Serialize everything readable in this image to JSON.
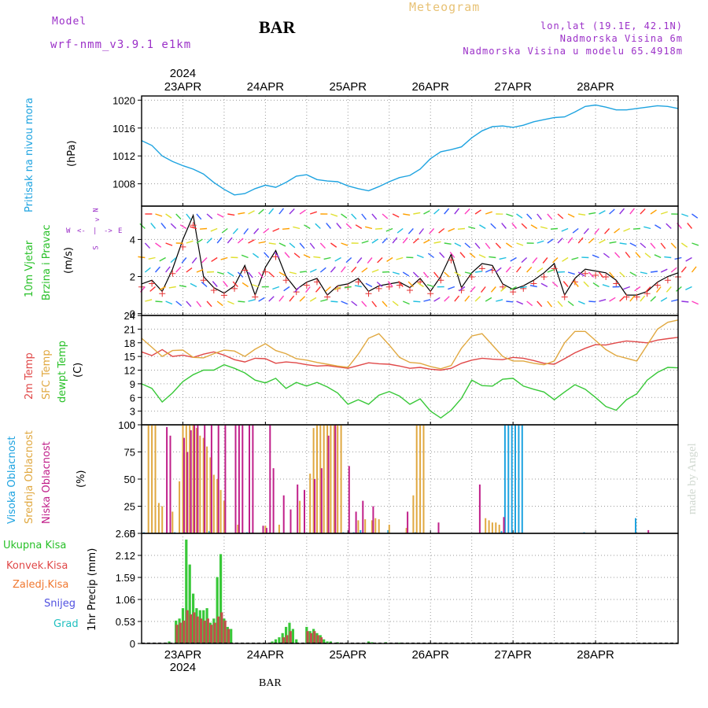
{
  "header": {
    "model_label": "Model",
    "model_value": "wrf-nmm_v3.9.1  e1km",
    "station": "BAR",
    "meteogram": "Meteogram",
    "lonlat": "lon,lat (19.1E, 42.1N)",
    "elevation": "Nadmorska Visina 6m",
    "model_elevation": "Nadmorska Visina u modelu 65.4918m",
    "credit": "made by Angel",
    "footer_station": "BAR"
  },
  "time_axis": {
    "year": "2024",
    "days": [
      "23APR",
      "24APR",
      "25APR",
      "26APR",
      "27APR",
      "28APR"
    ],
    "start_hour_offset": -12,
    "end_hour": 144
  },
  "panel_labels": {
    "pressure": {
      "title": "Pritisak na nivou mora",
      "unit": "(hPa)"
    },
    "wind": {
      "title1": "10m Vjetar",
      "title2": "Brzina i Pravac",
      "unit": "(m/s)",
      "compass_n": "N",
      "compass_s": "S",
      "compass_w": "W",
      "compass_e": "E"
    },
    "temp": {
      "t2m": "2m Temp",
      "sfc": "SFC Temp",
      "dew": "dewpt Temp",
      "unit": "(C)"
    },
    "cloud": {
      "high": "Visoka Oblacnost",
      "mid": "Srednja Oblacnost",
      "low": "Niska Oblacnost",
      "unit": "(%)"
    },
    "precip": {
      "total": "Ukupna Kisa",
      "conv": "Konvek.Kisa",
      "frz": "Zaledj.Kisa",
      "snow": "Snijeg",
      "grad": "Grad",
      "ylabel": "1hr Precip (mm)"
    }
  },
  "colors": {
    "pressure": "#1ea3e0",
    "wind_speed": "#000000",
    "wind_gust_marker": "#e53030",
    "t2m": "#e04848",
    "sfc": "#e0a840",
    "dew": "#38c838",
    "cloud_high": "#1ea3e0",
    "cloud_mid": "#e0a840",
    "cloud_low": "#c0208a",
    "precip_total": "#38c838",
    "precip_conv": "#c0504a",
    "precip_frz": "#f07830",
    "precip_snow": "#5050e0",
    "precip_grad": "#20c0c0"
  },
  "chart_data": [
    {
      "type": "line",
      "name_key": "pressure",
      "ylabel": "(hPa)",
      "ylim": [
        1004.8,
        1020.6
      ],
      "yticks": [
        1008,
        1012,
        1016,
        1020
      ],
      "grid": true,
      "x": [
        -12,
        -9,
        -6,
        -3,
        0,
        3,
        6,
        9,
        12,
        15,
        18,
        21,
        24,
        27,
        30,
        33,
        36,
        39,
        42,
        45,
        48,
        51,
        54,
        57,
        60,
        63,
        66,
        69,
        72,
        75,
        78,
        81,
        84,
        87,
        90,
        93,
        96,
        99,
        102,
        105,
        108,
        111,
        114,
        117,
        120,
        123,
        126,
        129,
        132,
        135,
        138,
        141,
        144
      ],
      "series": [
        {
          "name": "Pritisak na nivou mora",
          "values": [
            1014.2,
            1013.5,
            1012.0,
            1011.2,
            1010.6,
            1010.1,
            1009.4,
            1008.2,
            1007.2,
            1006.4,
            1006.6,
            1007.3,
            1007.8,
            1007.5,
            1008.2,
            1009.1,
            1009.3,
            1008.6,
            1008.4,
            1008.3,
            1007.7,
            1007.3,
            1007.0,
            1007.6,
            1008.3,
            1008.9,
            1009.2,
            1010.1,
            1011.6,
            1012.6,
            1012.9,
            1013.3,
            1014.6,
            1015.6,
            1016.2,
            1016.3,
            1016.1,
            1016.4,
            1016.9,
            1017.2,
            1017.5,
            1017.6,
            1018.3,
            1019.1,
            1019.3,
            1019.0,
            1018.6,
            1018.6,
            1018.8,
            1019.0,
            1019.2,
            1019.1,
            1018.8
          ]
        }
      ]
    },
    {
      "type": "line",
      "name_key": "wind",
      "ylabel": "(m/s)",
      "ylim": [
        -0.1,
        5.8
      ],
      "yticks": [
        0,
        2,
        4
      ],
      "grid": true,
      "x": [
        -12,
        -9,
        -6,
        -3,
        0,
        3,
        6,
        9,
        12,
        15,
        18,
        21,
        24,
        27,
        30,
        33,
        36,
        39,
        42,
        45,
        48,
        51,
        54,
        57,
        60,
        63,
        66,
        69,
        72,
        75,
        78,
        81,
        84,
        87,
        90,
        93,
        96,
        99,
        102,
        105,
        108,
        111,
        114,
        117,
        120,
        123,
        126,
        129,
        132,
        135,
        138,
        141,
        144
      ],
      "series": [
        {
          "name": "10m Vjetar",
          "values": [
            1.6,
            1.8,
            1.2,
            2.4,
            4.0,
            5.3,
            2.0,
            1.4,
            1.1,
            1.5,
            2.6,
            1.0,
            2.5,
            3.4,
            2.0,
            1.3,
            1.7,
            1.9,
            1.0,
            1.5,
            1.6,
            1.9,
            1.2,
            1.5,
            1.6,
            1.7,
            1.4,
            1.9,
            1.2,
            2.0,
            3.2,
            1.4,
            2.2,
            2.7,
            2.6,
            1.6,
            1.3,
            1.5,
            1.8,
            2.2,
            2.7,
            1.0,
            1.9,
            2.4,
            2.3,
            2.2,
            1.8,
            1.0,
            1.0,
            1.2,
            1.7,
            2.0,
            2.2
          ]
        }
      ]
    },
    {
      "type": "line",
      "name_key": "temp",
      "ylabel": "(C)",
      "ylim": [
        0,
        24
      ],
      "yticks": [
        0,
        3,
        6,
        9,
        12,
        15,
        18,
        21,
        24
      ],
      "grid": true,
      "x": [
        -12,
        -9,
        -6,
        -3,
        0,
        3,
        6,
        9,
        12,
        15,
        18,
        21,
        24,
        27,
        30,
        33,
        36,
        39,
        42,
        45,
        48,
        51,
        54,
        57,
        60,
        63,
        66,
        69,
        72,
        75,
        78,
        81,
        84,
        87,
        90,
        93,
        96,
        99,
        102,
        105,
        108,
        111,
        114,
        117,
        120,
        123,
        126,
        129,
        132,
        135,
        138,
        141,
        144
      ],
      "series": [
        {
          "name": "2m Temp",
          "values": [
            16.0,
            15.2,
            16.5,
            15.0,
            15.3,
            14.8,
            15.5,
            16.0,
            15.3,
            14.3,
            13.8,
            14.6,
            14.5,
            13.5,
            13.8,
            13.6,
            13.2,
            12.9,
            13.0,
            12.7,
            12.4,
            13.0,
            13.6,
            13.4,
            13.3,
            12.9,
            12.4,
            12.6,
            12.2,
            12.0,
            12.4,
            13.5,
            14.2,
            14.6,
            14.4,
            14.3,
            14.8,
            14.6,
            14.1,
            13.5,
            13.3,
            14.5,
            15.8,
            16.8,
            17.6,
            17.5,
            18.0,
            18.4,
            18.2,
            18.0,
            18.6,
            18.9,
            19.2
          ]
        },
        {
          "name": "SFC Temp",
          "values": [
            19.0,
            17.0,
            15.0,
            16.3,
            16.4,
            14.8,
            14.7,
            15.6,
            16.4,
            16.2,
            15.0,
            16.6,
            17.8,
            16.3,
            15.6,
            14.5,
            14.2,
            13.7,
            13.3,
            12.9,
            12.6,
            15.5,
            19.0,
            20.0,
            17.5,
            14.8,
            13.7,
            13.5,
            12.8,
            12.3,
            13.0,
            16.8,
            19.5,
            20.0,
            17.5,
            15.0,
            14.0,
            14.0,
            13.5,
            13.2,
            14.0,
            18.0,
            20.5,
            20.5,
            18.5,
            16.5,
            15.2,
            14.6,
            14.0,
            17.5,
            21.0,
            22.5,
            23.0
          ]
        },
        {
          "name": "dewpt Temp",
          "values": [
            9.0,
            8.0,
            5.0,
            7.0,
            9.5,
            11.0,
            12.0,
            12.0,
            13.2,
            12.4,
            11.4,
            9.8,
            9.2,
            10.2,
            8.0,
            9.3,
            8.5,
            9.3,
            8.3,
            7.0,
            4.5,
            5.5,
            4.5,
            6.5,
            7.3,
            6.3,
            4.5,
            5.7,
            3.0,
            1.5,
            3.2,
            5.8,
            9.8,
            8.6,
            8.5,
            10.0,
            10.2,
            8.5,
            7.8,
            7.2,
            5.5,
            7.2,
            8.8,
            7.8,
            6.0,
            4.0,
            3.2,
            5.5,
            6.8,
            9.8,
            11.5,
            12.6,
            12.5
          ]
        }
      ]
    },
    {
      "type": "bar",
      "name_key": "cloud",
      "ylabel": "(%)",
      "ylim": [
        0,
        100
      ],
      "yticks": [
        0,
        25,
        50,
        75,
        100
      ],
      "grid": true,
      "series": [
        {
          "name": "Visoka Oblacnost",
          "x": [
            -11,
            -2,
            1,
            8,
            19,
            47,
            50,
            52,
            60,
            68,
            93,
            94,
            95,
            96,
            97,
            98,
            99,
            117,
            132
          ],
          "values": [
            1,
            1,
            1,
            2,
            1,
            1,
            1,
            3,
            3,
            1,
            2,
            100,
            100,
            100,
            100,
            100,
            100,
            1,
            14
          ]
        },
        {
          "name": "Srednja Oblacnost",
          "x": [
            -10,
            -9,
            -8,
            -7,
            -6,
            -3,
            -1,
            0,
            1,
            2,
            3,
            4,
            5,
            6,
            7,
            8,
            9,
            10,
            11,
            12,
            16,
            24,
            28,
            34,
            37,
            38,
            39,
            40,
            41,
            42,
            43,
            44,
            45,
            46,
            51,
            53,
            55,
            56,
            57,
            60,
            65,
            67,
            68,
            69,
            70,
            88,
            89,
            90,
            91,
            92
          ],
          "values": [
            100,
            100,
            100,
            28,
            25,
            20,
            48,
            100,
            100,
            100,
            100,
            97,
            90,
            88,
            80,
            70,
            54,
            50,
            40,
            30,
            8,
            7,
            8,
            30,
            55,
            97,
            100,
            100,
            100,
            100,
            100,
            100,
            100,
            100,
            12,
            13,
            12,
            14,
            13,
            8,
            5,
            35,
            100,
            100,
            100,
            14,
            12,
            10,
            10,
            8
          ]
        },
        {
          "name": "Niska Oblacnost",
          "x": [
            -5,
            -4,
            0,
            1,
            2,
            3,
            4,
            6,
            8,
            10,
            12,
            15,
            16,
            17,
            19,
            20,
            23,
            24,
            25,
            26,
            29,
            31,
            33,
            35,
            38,
            40,
            42,
            44,
            48,
            50,
            52,
            55,
            65,
            74,
            86,
            93,
            135
          ],
          "values": [
            98,
            90,
            88,
            75,
            95,
            100,
            100,
            100,
            100,
            100,
            100,
            100,
            100,
            100,
            100,
            100,
            7,
            5,
            100,
            60,
            35,
            22,
            45,
            40,
            50,
            60,
            90,
            100,
            62,
            20,
            30,
            25,
            20,
            10,
            45,
            15,
            3
          ]
        }
      ]
    },
    {
      "type": "bar",
      "name_key": "precip",
      "ylabel": "1hr Precip (mm)",
      "ylim": [
        0,
        2.65
      ],
      "yticks": [
        0,
        0.53,
        1.06,
        1.59,
        2.12,
        2.65
      ],
      "grid": true,
      "series": [
        {
          "name": "Ukupna Kisa",
          "x": [
            -4,
            -2,
            -1,
            0,
            1,
            2,
            3,
            4,
            5,
            6,
            7,
            8,
            9,
            10,
            11,
            12,
            13,
            14,
            26,
            27,
            28,
            29,
            30,
            31,
            32,
            33,
            36,
            37,
            38,
            39,
            40,
            41,
            42,
            43,
            45,
            54,
            55,
            59,
            63
          ],
          "values": [
            0.05,
            0.55,
            0.6,
            0.85,
            2.5,
            1.9,
            1.2,
            0.85,
            0.8,
            0.8,
            0.85,
            0.5,
            0.6,
            1.6,
            2.15,
            0.6,
            0.4,
            0.35,
            0.05,
            0.1,
            0.15,
            0.25,
            0.4,
            0.5,
            0.35,
            0.1,
            0.4,
            0.3,
            0.35,
            0.25,
            0.2,
            0.1,
            0.05,
            0.05,
            0.03,
            0.05,
            0.03,
            0.03,
            0.02
          ]
        },
        {
          "name": "Konvek.Kisa",
          "x": [
            -2,
            -1,
            0,
            1,
            2,
            3,
            4,
            5,
            6,
            7,
            8,
            9,
            10,
            11,
            12,
            13,
            29,
            30,
            31,
            36,
            37,
            38,
            39,
            40
          ],
          "values": [
            0.45,
            0.5,
            0.55,
            0.8,
            0.7,
            0.75,
            0.65,
            0.6,
            0.55,
            0.6,
            0.45,
            0.5,
            0.65,
            0.75,
            0.55,
            0.35,
            0.15,
            0.2,
            0.3,
            0.3,
            0.25,
            0.3,
            0.2,
            0.15
          ]
        }
      ]
    }
  ]
}
